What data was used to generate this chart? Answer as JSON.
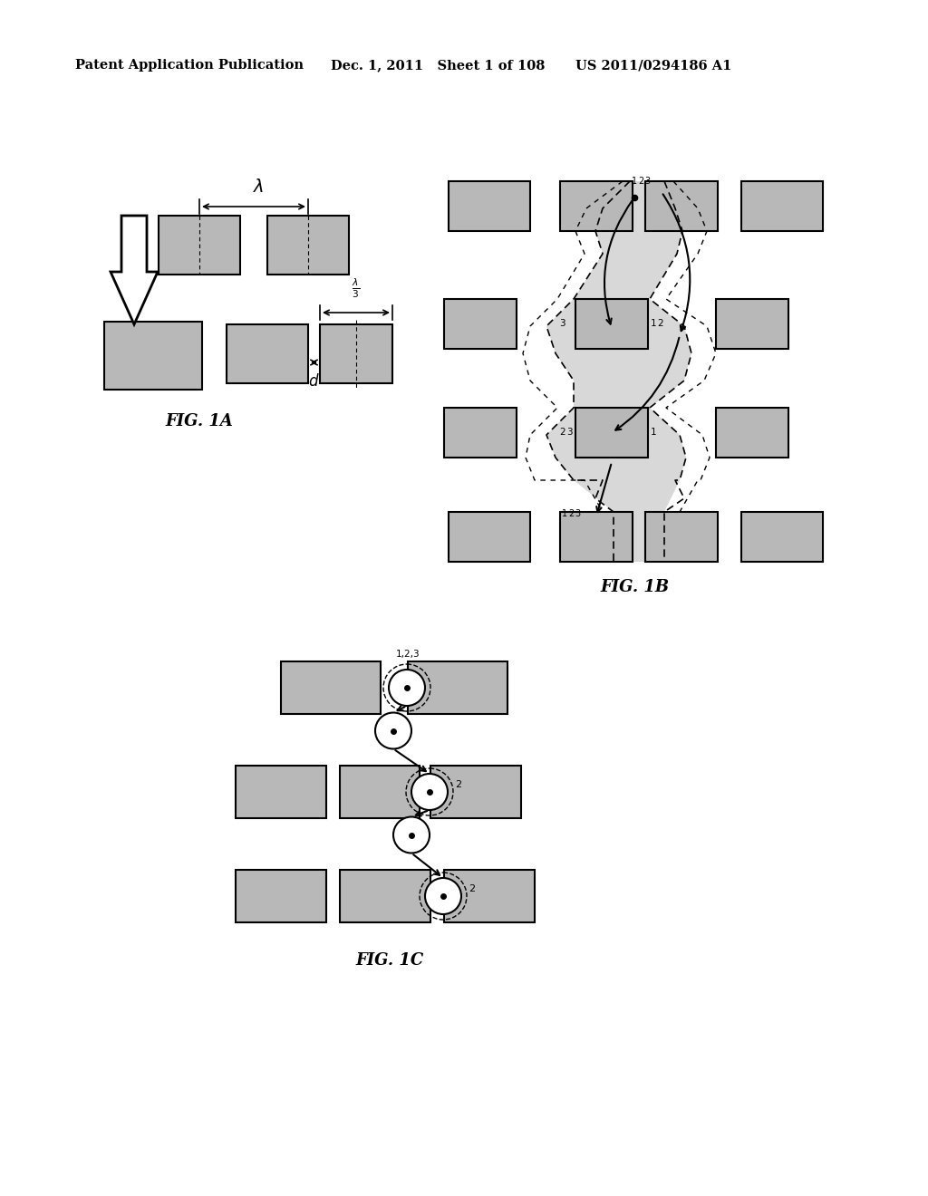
{
  "header_left": "Patent Application Publication",
  "header_mid": "Dec. 1, 2011   Sheet 1 of 108",
  "header_right": "US 2011/0294186 A1",
  "fig1a_label": "FIG. 1A",
  "fig1b_label": "FIG. 1B",
  "fig1c_label": "FIG. 1C",
  "bg_color": "#ffffff",
  "box_fill": "#b8b8b8",
  "box_edge": "#000000"
}
